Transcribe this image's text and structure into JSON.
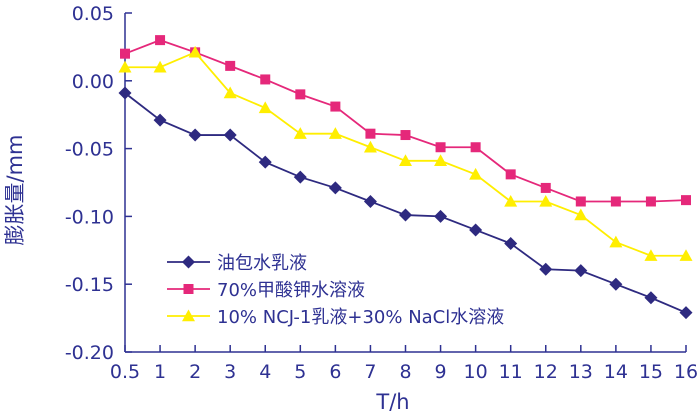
{
  "chart_data": {
    "type": "line",
    "xlabel": "T/h",
    "ylabel": "膨胀量/mm",
    "x": [
      "0.5",
      "1",
      "2",
      "3",
      "4",
      "5",
      "6",
      "7",
      "8",
      "9",
      "10",
      "11",
      "12",
      "13",
      "14",
      "15",
      "16"
    ],
    "ylim": [
      -0.2,
      0.05
    ],
    "yticks": [
      "0.05",
      "0.00",
      "-0.05",
      "-0.10",
      "-0.15",
      "-0.20"
    ],
    "grid": false,
    "legend_position": "bottom-left",
    "series": [
      {
        "name": "油包水乳液",
        "color": "#2e2a80",
        "marker": "diamond",
        "values": [
          -0.009,
          -0.029,
          -0.04,
          -0.04,
          -0.06,
          -0.071,
          -0.079,
          -0.089,
          -0.099,
          -0.1,
          -0.11,
          -0.12,
          -0.139,
          -0.14,
          -0.15,
          -0.16,
          -0.171
        ]
      },
      {
        "name": "70%甲酸钾水溶液",
        "color": "#e5287a",
        "marker": "square",
        "values": [
          0.02,
          0.03,
          0.021,
          0.011,
          0.001,
          -0.01,
          -0.019,
          -0.039,
          -0.04,
          -0.049,
          -0.049,
          -0.069,
          -0.079,
          -0.089,
          -0.089,
          -0.089,
          -0.088
        ]
      },
      {
        "name": "10% NCJ-1乳液+30% NaCl水溶液",
        "color": "#ffee00",
        "marker": "triangle",
        "values": [
          0.01,
          0.01,
          0.021,
          -0.009,
          -0.02,
          -0.039,
          -0.039,
          -0.049,
          -0.059,
          -0.059,
          -0.069,
          -0.089,
          -0.089,
          -0.099,
          -0.119,
          -0.129,
          -0.129
        ]
      }
    ]
  }
}
